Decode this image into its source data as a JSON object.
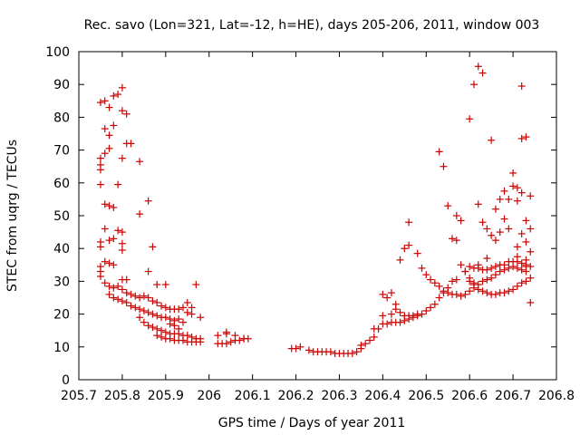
{
  "chart_data": {
    "type": "scatter",
    "title": "Rec. savo (Lon=321, Lat=-12, h=HE), days 205-206, 2011, window 003",
    "xlabel": "GPS time / Days of year 2011",
    "ylabel": "STEC from uqrg / TECUs",
    "xlim": [
      205.7,
      206.8
    ],
    "ylim": [
      0,
      100
    ],
    "x_ticks": [
      "205.7",
      "205.8",
      "205.9",
      "206",
      "206.1",
      "206.2",
      "206.3",
      "206.4",
      "206.5",
      "206.6",
      "206.7",
      "206.8"
    ],
    "y_ticks": [
      "0",
      "10",
      "20",
      "30",
      "40",
      "50",
      "60",
      "70",
      "80",
      "90",
      "100"
    ],
    "grid": false,
    "legend": "none",
    "marker": "plus",
    "color": "#cc0000",
    "series": [
      {
        "points": [
          [
            205.75,
            84.5
          ],
          [
            205.76,
            85
          ],
          [
            205.77,
            83
          ],
          [
            205.78,
            86.5
          ],
          [
            205.79,
            87
          ],
          [
            205.8,
            89
          ],
          [
            205.8,
            82
          ],
          [
            205.81,
            81
          ],
          [
            205.76,
            76.5
          ],
          [
            205.77,
            74.5
          ],
          [
            205.78,
            77.5
          ],
          [
            205.77,
            70.5
          ],
          [
            205.76,
            69
          ],
          [
            205.75,
            67.5
          ],
          [
            205.75,
            65.5
          ],
          [
            205.75,
            64
          ],
          [
            205.75,
            59.5
          ],
          [
            205.79,
            59.5
          ],
          [
            205.8,
            67.5
          ],
          [
            205.81,
            72
          ],
          [
            205.82,
            72
          ],
          [
            205.84,
            66.5
          ],
          [
            205.86,
            54.5
          ],
          [
            205.84,
            50.5
          ],
          [
            205.76,
            53.5
          ],
          [
            205.77,
            53
          ],
          [
            205.78,
            52.5
          ],
          [
            205.79,
            45.5
          ],
          [
            205.8,
            45
          ],
          [
            205.76,
            46
          ],
          [
            205.77,
            42.5
          ],
          [
            205.78,
            43
          ],
          [
            205.75,
            42
          ],
          [
            205.75,
            40.5
          ],
          [
            205.8,
            41.5
          ],
          [
            205.8,
            39.5
          ],
          [
            205.87,
            40.5
          ],
          [
            205.76,
            36
          ],
          [
            205.77,
            35.5
          ],
          [
            205.78,
            35
          ],
          [
            205.75,
            34.5
          ],
          [
            205.75,
            33
          ],
          [
            205.75,
            31.5
          ],
          [
            205.8,
            30.5
          ],
          [
            205.81,
            30.5
          ],
          [
            205.86,
            33
          ],
          [
            205.88,
            29
          ],
          [
            205.9,
            29
          ],
          [
            205.76,
            29.5
          ],
          [
            205.77,
            28.5
          ],
          [
            205.78,
            28
          ],
          [
            205.79,
            28.5
          ],
          [
            205.8,
            27.5
          ],
          [
            205.81,
            26.5
          ],
          [
            205.82,
            26
          ],
          [
            205.83,
            25.5
          ],
          [
            205.84,
            25
          ],
          [
            205.85,
            25.5
          ],
          [
            205.86,
            25
          ],
          [
            205.87,
            24
          ],
          [
            205.77,
            26
          ],
          [
            205.78,
            25
          ],
          [
            205.79,
            24.5
          ],
          [
            205.8,
            24
          ],
          [
            205.81,
            23.5
          ],
          [
            205.82,
            22.5
          ],
          [
            205.83,
            22
          ],
          [
            205.84,
            21.5
          ],
          [
            205.85,
            21
          ],
          [
            205.86,
            20.5
          ],
          [
            205.87,
            20
          ],
          [
            205.88,
            19.5
          ],
          [
            205.89,
            19
          ],
          [
            205.9,
            19
          ],
          [
            205.91,
            18.5
          ],
          [
            205.92,
            18
          ],
          [
            205.93,
            18.5
          ],
          [
            205.94,
            17.5
          ],
          [
            205.88,
            23.5
          ],
          [
            205.89,
            22.5
          ],
          [
            205.9,
            22
          ],
          [
            205.91,
            21.5
          ],
          [
            205.92,
            21.5
          ],
          [
            205.93,
            21.5
          ],
          [
            205.94,
            22
          ],
          [
            205.95,
            20.5
          ],
          [
            205.96,
            20
          ],
          [
            205.95,
            23.5
          ],
          [
            205.96,
            22
          ],
          [
            205.97,
            29
          ],
          [
            205.98,
            19
          ],
          [
            205.84,
            19
          ],
          [
            205.85,
            17.5
          ],
          [
            205.86,
            16.5
          ],
          [
            205.87,
            16
          ],
          [
            205.88,
            15.5
          ],
          [
            205.89,
            15
          ],
          [
            205.9,
            14.5
          ],
          [
            205.91,
            14
          ],
          [
            205.92,
            14
          ],
          [
            205.93,
            14
          ],
          [
            205.94,
            13.5
          ],
          [
            205.95,
            13.5
          ],
          [
            205.96,
            13
          ],
          [
            205.97,
            12.5
          ],
          [
            205.98,
            12.5
          ],
          [
            205.88,
            13.5
          ],
          [
            205.89,
            13
          ],
          [
            205.9,
            12.5
          ],
          [
            205.91,
            12.5
          ],
          [
            205.92,
            12
          ],
          [
            205.93,
            12
          ],
          [
            205.94,
            12
          ],
          [
            205.95,
            11.5
          ],
          [
            205.96,
            11.5
          ],
          [
            205.97,
            11.5
          ],
          [
            205.98,
            11.5
          ],
          [
            205.93,
            15.5
          ],
          [
            205.92,
            16.5
          ],
          [
            205.91,
            17
          ],
          [
            206.02,
            13.5
          ],
          [
            206.04,
            14
          ],
          [
            206.06,
            13.5
          ],
          [
            206.08,
            12.5
          ],
          [
            206.02,
            11
          ],
          [
            206.03,
            11
          ],
          [
            206.04,
            11
          ],
          [
            206.05,
            11.5
          ],
          [
            206.06,
            12
          ],
          [
            206.07,
            12
          ],
          [
            206.08,
            12.5
          ],
          [
            206.09,
            12.5
          ],
          [
            206.04,
            14.5
          ],
          [
            206.19,
            9.5
          ],
          [
            206.2,
            9.5
          ],
          [
            206.21,
            10
          ],
          [
            206.23,
            9
          ],
          [
            206.24,
            8.5
          ],
          [
            206.25,
            8.5
          ],
          [
            206.26,
            8.5
          ],
          [
            206.27,
            8.5
          ],
          [
            206.28,
            8.5
          ],
          [
            206.29,
            8
          ],
          [
            206.3,
            8
          ],
          [
            206.31,
            8
          ],
          [
            206.32,
            8
          ],
          [
            206.33,
            8
          ],
          [
            206.34,
            8.5
          ],
          [
            206.35,
            9.5
          ],
          [
            206.35,
            10.5
          ],
          [
            206.36,
            11
          ],
          [
            206.37,
            12
          ],
          [
            206.38,
            13
          ],
          [
            206.38,
            15.5
          ],
          [
            206.39,
            15.5
          ],
          [
            206.4,
            17
          ],
          [
            206.41,
            17
          ],
          [
            206.42,
            17.5
          ],
          [
            206.43,
            17.5
          ],
          [
            206.44,
            17.5
          ],
          [
            206.45,
            18
          ],
          [
            206.46,
            18.5
          ],
          [
            206.47,
            19
          ],
          [
            206.48,
            19.5
          ],
          [
            206.49,
            20
          ],
          [
            206.4,
            19.5
          ],
          [
            206.42,
            20
          ],
          [
            206.43,
            21.5
          ],
          [
            206.44,
            20.5
          ],
          [
            206.45,
            19.5
          ],
          [
            206.46,
            19.5
          ],
          [
            206.47,
            19.5
          ],
          [
            206.48,
            20
          ],
          [
            206.5,
            21
          ],
          [
            206.51,
            22
          ],
          [
            206.52,
            23
          ],
          [
            206.53,
            25
          ],
          [
            206.54,
            26.5
          ],
          [
            206.55,
            28
          ],
          [
            206.56,
            30
          ],
          [
            206.57,
            30.5
          ],
          [
            206.4,
            26
          ],
          [
            206.41,
            25
          ],
          [
            206.42,
            26.5
          ],
          [
            206.43,
            23
          ],
          [
            206.44,
            36.5
          ],
          [
            206.45,
            40
          ],
          [
            206.46,
            41
          ],
          [
            206.46,
            48
          ],
          [
            206.48,
            38.5
          ],
          [
            206.49,
            34
          ],
          [
            206.5,
            32
          ],
          [
            206.51,
            30.5
          ],
          [
            206.52,
            29.5
          ],
          [
            206.53,
            28.5
          ],
          [
            206.54,
            27
          ],
          [
            206.55,
            26.5
          ],
          [
            206.56,
            26
          ],
          [
            206.57,
            26
          ],
          [
            206.58,
            25.5
          ],
          [
            206.59,
            26
          ],
          [
            206.6,
            27
          ],
          [
            206.61,
            28
          ],
          [
            206.62,
            29
          ],
          [
            206.63,
            30
          ],
          [
            206.64,
            30.5
          ],
          [
            206.65,
            31
          ],
          [
            206.66,
            32
          ],
          [
            206.67,
            33
          ],
          [
            206.68,
            33.5
          ],
          [
            206.69,
            34
          ],
          [
            206.7,
            34.5
          ],
          [
            206.71,
            34
          ],
          [
            206.72,
            33.5
          ],
          [
            206.73,
            33
          ],
          [
            206.73,
            34.5
          ],
          [
            206.73,
            36.5
          ],
          [
            206.53,
            69.5
          ],
          [
            206.54,
            65
          ],
          [
            206.55,
            53
          ],
          [
            206.56,
            43
          ],
          [
            206.57,
            42.5
          ],
          [
            206.57,
            50
          ],
          [
            206.58,
            48.5
          ],
          [
            206.58,
            35
          ],
          [
            206.59,
            33
          ],
          [
            206.6,
            30
          ],
          [
            206.61,
            29.5
          ],
          [
            206.62,
            35
          ],
          [
            206.6,
            79.5
          ],
          [
            206.61,
            90
          ],
          [
            206.62,
            95.5
          ],
          [
            206.63,
            93.5
          ],
          [
            206.62,
            53.5
          ],
          [
            206.63,
            48
          ],
          [
            206.64,
            46
          ],
          [
            206.64,
            37
          ],
          [
            206.65,
            73
          ],
          [
            206.65,
            44
          ],
          [
            206.66,
            42.5
          ],
          [
            206.66,
            52
          ],
          [
            206.67,
            55
          ],
          [
            206.67,
            45
          ],
          [
            206.68,
            57.5
          ],
          [
            206.68,
            49
          ],
          [
            206.69,
            55
          ],
          [
            206.69,
            46
          ],
          [
            206.7,
            59
          ],
          [
            206.7,
            63
          ],
          [
            206.71,
            58.5
          ],
          [
            206.71,
            54.5
          ],
          [
            206.71,
            40.5
          ],
          [
            206.71,
            37.5
          ],
          [
            206.72,
            57
          ],
          [
            206.72,
            89.5
          ],
          [
            206.72,
            73.5
          ],
          [
            206.73,
            74
          ],
          [
            206.72,
            44.5
          ],
          [
            206.73,
            48.5
          ],
          [
            206.73,
            42
          ],
          [
            206.74,
            46
          ],
          [
            206.74,
            39
          ],
          [
            206.74,
            56
          ],
          [
            206.74,
            31
          ],
          [
            206.74,
            23.5
          ],
          [
            206.73,
            30
          ],
          [
            206.72,
            29.5
          ],
          [
            206.71,
            28.5
          ],
          [
            206.7,
            27.5
          ],
          [
            206.69,
            27
          ],
          [
            206.68,
            26.5
          ],
          [
            206.67,
            26.5
          ],
          [
            206.66,
            26
          ],
          [
            206.65,
            26
          ],
          [
            206.64,
            26.5
          ],
          [
            206.63,
            27
          ],
          [
            206.62,
            27.5
          ],
          [
            206.61,
            29
          ],
          [
            206.6,
            31
          ],
          [
            206.59,
            33
          ],
          [
            206.6,
            34.5
          ],
          [
            206.61,
            34
          ],
          [
            206.62,
            34
          ],
          [
            206.63,
            33.5
          ],
          [
            206.64,
            33.5
          ],
          [
            206.65,
            34
          ],
          [
            206.66,
            34.5
          ],
          [
            206.67,
            35
          ],
          [
            206.68,
            35
          ],
          [
            206.69,
            36
          ],
          [
            206.7,
            36
          ],
          [
            206.71,
            36
          ],
          [
            206.72,
            35.5
          ],
          [
            206.73,
            35
          ],
          [
            206.74,
            34.5
          ]
        ]
      }
    ]
  }
}
